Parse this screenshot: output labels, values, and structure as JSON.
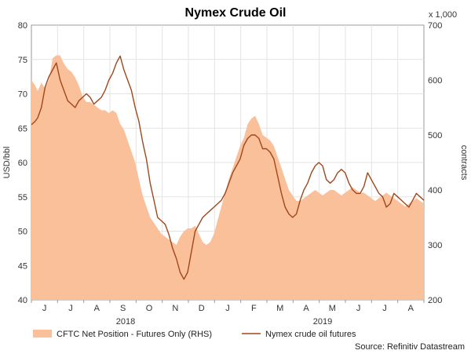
{
  "chart_data": {
    "type": "area+line",
    "title": "Nymex Crude Oil",
    "ylabel": "USD/bbl",
    "ylabel_right": "contracts",
    "right_axis_multiplier": "x 1,000",
    "ylim": [
      40,
      80
    ],
    "ylim_right": [
      200,
      700
    ],
    "yticks": [
      "80",
      "75",
      "70",
      "65",
      "60",
      "55",
      "50",
      "45",
      "40"
    ],
    "yticks_right": [
      "700",
      "600",
      "500",
      "400",
      "300",
      "200"
    ],
    "month_labels": [
      "J",
      "J",
      "A",
      "S",
      "O",
      "N",
      "D",
      "J",
      "F",
      "M",
      "A",
      "M",
      "J",
      "J",
      "A"
    ],
    "year_labels": [
      "2018",
      "2019"
    ],
    "grid": true,
    "legend_position": "bottom",
    "source": "Source: Refinitiv Datastream",
    "series": [
      {
        "name": "CFTC Net Position - Futures Only (RHS)",
        "kind": "area",
        "axis": "right",
        "color": "#f9c09a",
        "x": [
          0,
          3,
          5,
          8,
          11,
          14,
          17,
          20,
          23,
          26,
          29,
          32,
          35,
          38,
          41,
          44,
          47,
          50,
          53,
          56,
          59,
          62,
          65,
          68,
          71,
          74,
          77,
          80,
          83,
          86,
          89,
          92,
          95,
          98,
          101,
          104,
          107,
          110,
          113,
          116,
          119,
          122,
          125,
          128,
          131,
          134,
          137,
          140,
          143,
          146,
          149,
          152,
          155,
          158,
          161,
          164,
          167,
          170,
          173,
          176,
          179,
          182,
          185,
          188,
          191,
          194,
          197,
          200,
          203,
          206,
          209,
          212,
          215,
          218,
          221,
          224,
          227,
          230,
          233,
          236,
          239,
          242,
          245,
          248,
          251,
          254,
          257,
          260,
          263,
          266,
          269,
          272,
          275,
          278,
          281,
          284,
          287,
          290,
          293,
          296,
          299,
          302,
          305,
          308,
          311,
          314
        ],
        "values": [
          600,
          590,
          580,
          595,
          585,
          600,
          640,
          645,
          645,
          630,
          620,
          615,
          605,
          590,
          570,
          560,
          560,
          555,
          550,
          545,
          545,
          540,
          545,
          540,
          520,
          510,
          490,
          470,
          450,
          420,
          390,
          370,
          350,
          340,
          330,
          320,
          315,
          310,
          305,
          300,
          315,
          325,
          330,
          330,
          335,
          320,
          305,
          300,
          305,
          320,
          345,
          370,
          395,
          420,
          440,
          460,
          480,
          495,
          520,
          530,
          535,
          520,
          500,
          495,
          490,
          480,
          460,
          440,
          420,
          400,
          390,
          380,
          380,
          385,
          390,
          395,
          400,
          395,
          390,
          395,
          400,
          400,
          395,
          390,
          395,
          400,
          405,
          400,
          395,
          395,
          390,
          385,
          380,
          385,
          390,
          395,
          390,
          385,
          380,
          375,
          370,
          375,
          380,
          385,
          380,
          375
        ]
      },
      {
        "name": "Nymex crude oil futures",
        "kind": "line",
        "axis": "left",
        "color": "#a0471b",
        "x": [
          0,
          3,
          5,
          8,
          11,
          14,
          17,
          20,
          23,
          26,
          29,
          32,
          35,
          38,
          41,
          44,
          47,
          50,
          53,
          56,
          59,
          62,
          65,
          68,
          71,
          74,
          77,
          80,
          83,
          86,
          89,
          92,
          95,
          98,
          101,
          104,
          107,
          110,
          113,
          116,
          119,
          122,
          125,
          128,
          131,
          134,
          137,
          140,
          143,
          146,
          149,
          152,
          155,
          158,
          161,
          164,
          167,
          170,
          173,
          176,
          179,
          182,
          185,
          188,
          191,
          194,
          197,
          200,
          203,
          206,
          209,
          212,
          215,
          218,
          221,
          224,
          227,
          230,
          233,
          236,
          239,
          242,
          245,
          248,
          251,
          254,
          257,
          260,
          263,
          266,
          269,
          272,
          275,
          278,
          281,
          284,
          287,
          290,
          293,
          296,
          299,
          302,
          305,
          308,
          311,
          314
        ],
        "values": [
          65.5,
          66,
          66.5,
          68,
          71,
          72.5,
          73.5,
          74.5,
          72,
          70.5,
          69,
          68.5,
          68,
          69,
          69.5,
          70,
          69.5,
          68.5,
          69,
          69.5,
          70.5,
          72,
          73,
          74.5,
          75.5,
          73.5,
          72,
          70.5,
          68,
          66,
          63,
          60.5,
          57,
          54.5,
          52,
          51.5,
          51,
          49.5,
          47.5,
          46,
          44,
          43,
          44,
          47,
          50,
          51,
          52,
          52.5,
          53,
          53.5,
          54,
          54.5,
          55.5,
          57,
          58.5,
          59.5,
          60.5,
          62.5,
          63.5,
          64,
          64,
          63.5,
          62,
          62,
          61.5,
          60.5,
          58,
          55.5,
          53.5,
          52.5,
          52,
          52.5,
          54.5,
          56,
          57,
          58.5,
          59.5,
          60,
          59.5,
          57.5,
          57,
          57.5,
          58.5,
          59,
          58.5,
          57,
          56,
          55.5,
          55.5,
          56.5,
          58.5,
          57.5,
          56.5,
          55.5,
          55,
          53.5,
          54,
          55.5,
          55,
          54.5,
          54,
          53.5,
          54.5,
          55.5,
          55,
          54.5
        ]
      }
    ]
  }
}
